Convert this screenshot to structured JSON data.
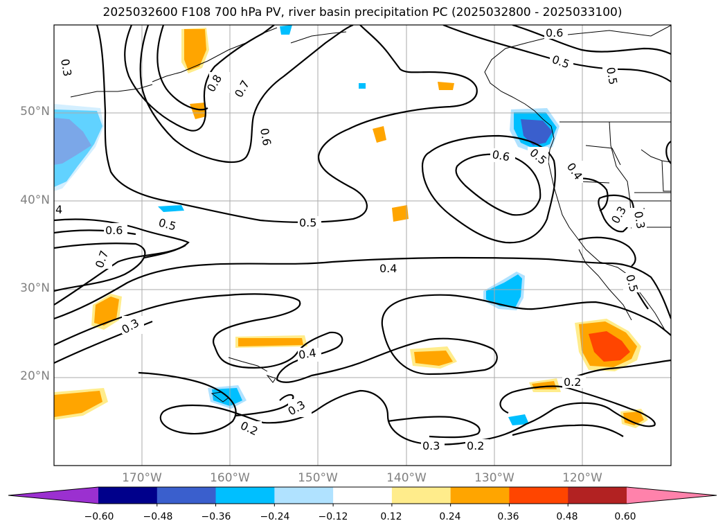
{
  "title": "2025032600 F108 700 hPa PV, river basin precipitation PC (2025032800 - 2025033100)",
  "lat_labels": [
    "50°N",
    "40°N",
    "30°N",
    "20°N"
  ],
  "lon_labels": [
    "170°W",
    "160°W",
    "150°W",
    "140°W",
    "130°W",
    "120°W"
  ],
  "colorbar": {
    "colors": [
      "#9b30d0",
      "#00008b",
      "#3a5fcd",
      "#00bfff",
      "#b0e2ff",
      "#ffffff",
      "#ffec8b",
      "#ffa500",
      "#ff4500",
      "#b22222",
      "#ff82ab"
    ],
    "tick_labels": [
      "−0.60",
      "−0.48",
      "−0.36",
      "−0.24",
      "−0.12",
      "0.12",
      "0.24",
      "0.36",
      "0.48",
      "0.60"
    ]
  },
  "contour_labels": {
    "c03_top": "0.3",
    "c08": "0.8",
    "c07_top": "0.7",
    "c06_top": "0.6",
    "c06_ne": "0.6",
    "c05_ne": "0.5",
    "c05_e": "0.5",
    "c06_center": "0.6",
    "c05_coast": "0.5",
    "c04_coast": "0.4",
    "c4_left": "4",
    "c06_left": "0.6",
    "c05_left": "0.5",
    "c05_mid": "0.5",
    "c07_left": "0.7",
    "c04_mid": "0.4",
    "c03_left": "0.3",
    "c04_low": "0.4",
    "c03_low": "0.3",
    "c02_low": "0.2",
    "c03_bot": "0.3",
    "c02_bot": "0.2",
    "c02_right": "0.2",
    "c03_ca": "0.3",
    "c03_ca2": "0.3",
    "c05_ca": "0.5"
  }
}
